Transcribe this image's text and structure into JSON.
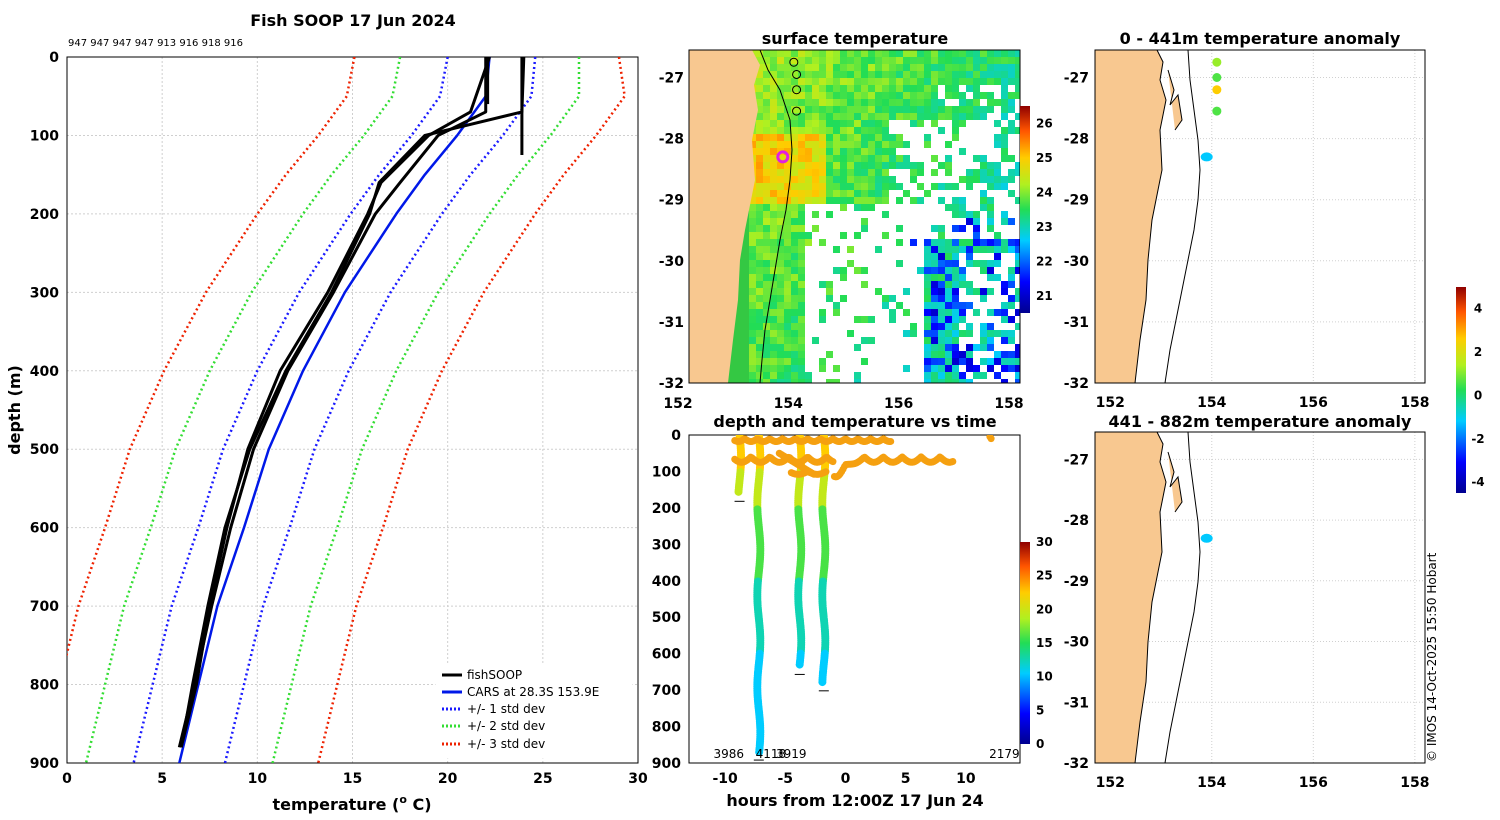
{
  "colors": {
    "cars": "#0018e8",
    "std1": "#1a1aff",
    "std2": "#33dd33",
    "std3": "#ee2200",
    "fish": "#000000",
    "land": "#f8c890",
    "orange": "#f5a010"
  },
  "chart_data": [
    {
      "type": "line",
      "id": "profile",
      "title": "Fish SOOP 17 Jun 2024",
      "drop_labels": "947 947 947 947 913 916 918 916",
      "xlabel": "temperature (",
      "xlabel_sup": "o",
      "xlabel_end": " C)",
      "ylabel": "depth (m)",
      "xlim": [
        0,
        30
      ],
      "ylim": [
        0,
        900
      ],
      "x_ticks": [
        "0",
        "5",
        "10",
        "15",
        "20",
        "25",
        "30"
      ],
      "y_ticks": [
        "0",
        "100",
        "200",
        "300",
        "400",
        "500",
        "600",
        "700",
        "800",
        "900"
      ],
      "depths": [
        0,
        50,
        100,
        150,
        200,
        300,
        400,
        500,
        600,
        700,
        800,
        900
      ],
      "cars": [
        22.2,
        22.0,
        20.5,
        18.8,
        17.3,
        14.6,
        12.4,
        10.6,
        9.3,
        7.9,
        6.9,
        5.9
      ],
      "std_offsets": {
        "1": 2.4,
        "2": 4.9,
        "3": 7.3
      },
      "std_upper_surface": {
        "1": 24.6,
        "2": 26.9,
        "3": 29.0
      },
      "fish_depths": [
        0,
        70,
        100,
        160,
        200,
        300,
        400,
        500,
        600,
        700,
        800,
        880
      ],
      "fish_profiles": [
        [
          22.0,
          22.0,
          19.5,
          17.5,
          16.2,
          14.0,
          11.6,
          9.8,
          8.6,
          7.6,
          6.7,
          5.9
        ],
        [
          22.2,
          21.2,
          19.0,
          16.5,
          15.8,
          13.7,
          11.2,
          9.5,
          8.4,
          7.5,
          6.8,
          6.0
        ],
        [
          24.0,
          23.9,
          18.8,
          16.4,
          15.9,
          13.9,
          11.5,
          9.6,
          8.3,
          7.4,
          6.6,
          6.0
        ]
      ],
      "series": [
        {
          "name": "fishSOOP"
        },
        {
          "name": "CARS at 28.3S 153.9E"
        },
        {
          "name": "+/- 1 std dev"
        },
        {
          "name": "+/- 2 std dev"
        },
        {
          "name": "+/- 3 std dev"
        }
      ]
    },
    {
      "type": "heatmap",
      "id": "sst_map",
      "title": "surface temperature",
      "x_ticks": [
        "152",
        "154",
        "156",
        "158"
      ],
      "y_ticks": [
        "-27",
        "-28",
        "-29",
        "-30",
        "-31",
        "-32"
      ],
      "colorbar_ticks": [
        "26",
        "25",
        "24",
        "23",
        "22",
        "21"
      ],
      "colorbar_range": [
        20.5,
        26.5
      ],
      "drop_positions": [
        [
          154.1,
          -26.75
        ],
        [
          154.15,
          -26.95
        ],
        [
          154.15,
          -27.2
        ],
        [
          154.15,
          -27.55
        ]
      ],
      "highlight_position": [
        153.9,
        -28.3
      ]
    },
    {
      "type": "scatter",
      "id": "depth_time",
      "title": "depth and temperature vs time",
      "xlabel": "hours from 12:00Z 17 Jun 24",
      "xlim": [
        -13,
        14.5
      ],
      "ylim": [
        0,
        900
      ],
      "x_ticks": [
        "-10",
        "-5",
        "0",
        "5",
        "10"
      ],
      "y_ticks": [
        "0",
        "100",
        "200",
        "300",
        "400",
        "500",
        "600",
        "700",
        "800",
        "900"
      ],
      "colorbar_ticks": [
        "30",
        "25",
        "20",
        "15",
        "10",
        "5",
        "0"
      ],
      "bottom_labels": [
        "3986",
        "4118",
        "3919",
        "2179"
      ],
      "drops": [
        {
          "hour": -8.8,
          "max_depth": 160
        },
        {
          "hour": -7.2,
          "max_depth": 870
        },
        {
          "hour": -3.8,
          "max_depth": 635
        },
        {
          "hour": -1.8,
          "max_depth": 680
        }
      ]
    },
    {
      "type": "scatter",
      "id": "anom_shallow",
      "title": "0 - 441m temperature anomaly",
      "x_ticks": [
        "152",
        "154",
        "156",
        "158"
      ],
      "y_ticks": [
        "-27",
        "-28",
        "-29",
        "-30",
        "-31",
        "-32"
      ],
      "points": [
        {
          "lon": 154.1,
          "lat": -26.75,
          "anom": 1.2
        },
        {
          "lon": 154.1,
          "lat": -27.0,
          "anom": 0.6
        },
        {
          "lon": 154.1,
          "lat": -27.2,
          "anom": 2.6
        },
        {
          "lon": 154.1,
          "lat": -27.55,
          "anom": 0.6
        },
        {
          "lon": 153.9,
          "lat": -28.3,
          "anom": -1.2
        }
      ]
    },
    {
      "type": "scatter",
      "id": "anom_deep",
      "title": "441 - 882m temperature anomaly",
      "x_ticks": [
        "152",
        "154",
        "156",
        "158"
      ],
      "y_ticks": [
        "-27",
        "-28",
        "-29",
        "-30",
        "-31",
        "-32"
      ],
      "points": [
        {
          "lon": 153.9,
          "lat": -28.3,
          "anom": -1.2
        }
      ],
      "colorbar_ticks": [
        "4",
        "2",
        "0",
        "-2",
        "-4"
      ],
      "colorbar_range": [
        -4.5,
        5.0
      ]
    }
  ],
  "stamp": "© IMOS 14-Oct-2025 15:50 Hobart"
}
